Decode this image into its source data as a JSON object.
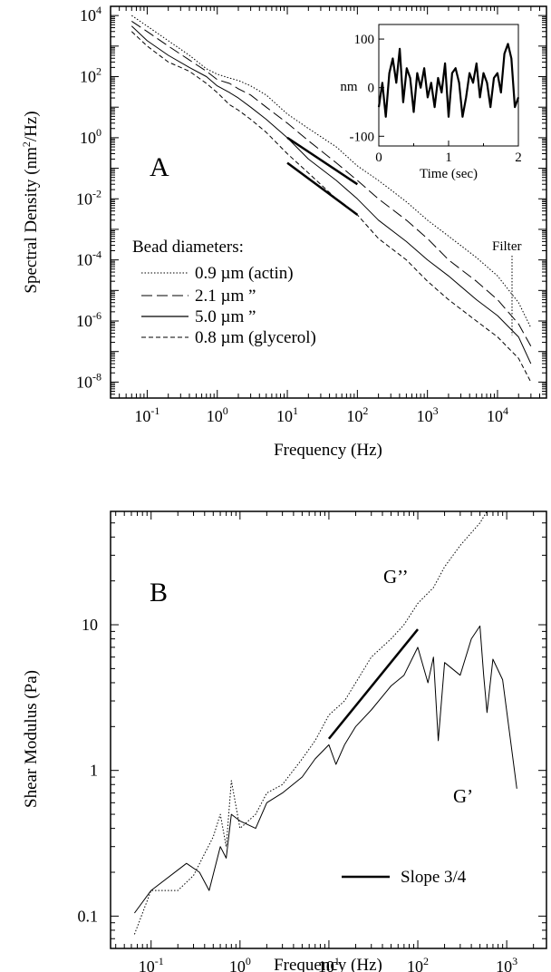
{
  "chart_data": [
    {
      "panel_label": "A",
      "type": "line",
      "xlabel": "Frequency (Hz)",
      "ylabel": "Spectral Density (nm²/Hz)",
      "ylabel_main": "Spectral Density (nm",
      "ylabel_sup": "2",
      "ylabel_end": "/Hz)",
      "xscale": "log",
      "yscale": "log",
      "xlim": [
        0.03,
        50000
      ],
      "ylim": [
        3e-09,
        20000
      ],
      "x_ticks": [
        {
          "mant": "10",
          "exp": "-1",
          "value": 0.1
        },
        {
          "mant": "10",
          "exp": "0",
          "value": 1
        },
        {
          "mant": "10",
          "exp": "1",
          "value": 10
        },
        {
          "mant": "10",
          "exp": "2",
          "value": 100
        },
        {
          "mant": "10",
          "exp": "3",
          "value": 1000
        },
        {
          "mant": "10",
          "exp": "4",
          "value": 10000
        }
      ],
      "y_ticks": [
        {
          "mant": "10",
          "exp": "4",
          "value": 10000
        },
        {
          "mant": "10",
          "exp": "2",
          "value": 100
        },
        {
          "mant": "10",
          "exp": "0",
          "value": 1
        },
        {
          "mant": "10",
          "exp": "-2",
          "value": 0.01
        },
        {
          "mant": "10",
          "exp": "-4",
          "value": 0.0001
        },
        {
          "mant": "10",
          "exp": "-6",
          "value": 1e-06
        },
        {
          "mant": "10",
          "exp": "-8",
          "value": 1e-08
        }
      ],
      "legend_title": "Bead diameters:",
      "legend_placement": "lower-left",
      "series": [
        {
          "name": "0.9 µm (actin)",
          "style": "dotted",
          "x": [
            0.06,
            0.1,
            0.2,
            0.4,
            0.7,
            1,
            1.5,
            2,
            3,
            5,
            10,
            20,
            50,
            100,
            200,
            500,
            1000,
            2000,
            5000,
            10000,
            20000,
            30000
          ],
          "y": [
            10000,
            4500,
            1500,
            500,
            180,
            120,
            90,
            75,
            50,
            25,
            6,
            2,
            0.5,
            0.12,
            0.04,
            0.008,
            0.002,
            0.0006,
            0.00012,
            3e-05,
            4e-06,
            6e-07
          ]
        },
        {
          "name": "2.1 µm   ”",
          "style": "long-dash",
          "x": [
            0.06,
            0.1,
            0.2,
            0.4,
            0.7,
            1,
            1.5,
            2,
            3,
            5,
            10,
            20,
            50,
            100,
            200,
            500,
            1000,
            2000,
            5000,
            10000,
            20000,
            30000
          ],
          "y": [
            6500,
            3000,
            1000,
            350,
            150,
            80,
            60,
            40,
            25,
            10,
            3,
            0.8,
            0.15,
            0.04,
            0.01,
            0.002,
            0.0005,
            0.0001,
            2e-05,
            5e-06,
            8e-07,
            1.5e-07
          ]
        },
        {
          "name": "5.0 µm   ”",
          "style": "solid",
          "x": [
            0.06,
            0.1,
            0.2,
            0.4,
            0.7,
            1,
            1.5,
            2,
            3,
            5,
            10,
            20,
            50,
            100,
            200,
            500,
            1000,
            2000,
            5000,
            10000,
            20000,
            30000
          ],
          "y": [
            4500,
            1500,
            500,
            200,
            100,
            50,
            30,
            20,
            10,
            4,
            1,
            0.2,
            0.04,
            0.01,
            0.002,
            0.0004,
            0.0001,
            3e-05,
            5e-06,
            1.5e-06,
            3e-07,
            4e-08
          ]
        },
        {
          "name": "0.8 µm (glycerol)",
          "style": "short-dash",
          "x": [
            0.06,
            0.1,
            0.2,
            0.4,
            0.7,
            1,
            1.5,
            2,
            3,
            5,
            10,
            20,
            50,
            100,
            200,
            500,
            1000,
            2000,
            5000,
            10000,
            20000,
            30000
          ],
          "y": [
            3000,
            1000,
            300,
            150,
            60,
            30,
            12,
            8,
            4,
            1.5,
            0.3,
            0.07,
            0.01,
            0.003,
            0.0005,
            0.0001,
            2e-05,
            5e-06,
            1e-06,
            3e-07,
            6e-08,
            1e-08
          ]
        }
      ],
      "slope_lines": [
        {
          "x": [
            10,
            100
          ],
          "y": [
            1,
            0.03
          ]
        },
        {
          "x": [
            10,
            100
          ],
          "y": [
            0.15,
            0.003
          ]
        }
      ],
      "annotations": [
        {
          "text": "Filter",
          "x": 20000
        }
      ],
      "inset": {
        "type": "line",
        "xlabel": "Time (sec)",
        "ylabel": "nm",
        "xlim": [
          0,
          2
        ],
        "ylim": [
          -120,
          130
        ],
        "x_ticks": [
          "0",
          "1",
          "2"
        ],
        "y_ticks": [
          "100",
          "0",
          "-100"
        ],
        "x": [
          0,
          0.05,
          0.1,
          0.15,
          0.2,
          0.25,
          0.3,
          0.35,
          0.4,
          0.45,
          0.5,
          0.55,
          0.6,
          0.65,
          0.7,
          0.75,
          0.8,
          0.85,
          0.9,
          0.95,
          1,
          1.05,
          1.1,
          1.15,
          1.2,
          1.25,
          1.3,
          1.35,
          1.4,
          1.45,
          1.5,
          1.55,
          1.6,
          1.65,
          1.7,
          1.75,
          1.8,
          1.85,
          1.9,
          1.95,
          2
        ],
        "y": [
          -40,
          10,
          -60,
          30,
          60,
          10,
          80,
          -30,
          40,
          20,
          -50,
          30,
          0,
          40,
          -20,
          10,
          -40,
          20,
          -10,
          50,
          -60,
          30,
          40,
          10,
          -60,
          -20,
          30,
          10,
          50,
          -20,
          30,
          10,
          -40,
          20,
          30,
          -10,
          70,
          90,
          60,
          -40,
          -20
        ]
      }
    },
    {
      "panel_label": "B",
      "type": "line",
      "xlabel": "Frequency (Hz)",
      "ylabel": "Shear Modulus (Pa)",
      "xscale": "log",
      "yscale": "log",
      "xlim": [
        0.035,
        2800
      ],
      "ylim": [
        0.06,
        60
      ],
      "x_ticks": [
        {
          "mant": "10",
          "exp": "-1",
          "value": 0.1
        },
        {
          "mant": "10",
          "exp": "0",
          "value": 1
        },
        {
          "mant": "10",
          "exp": "1",
          "value": 10
        },
        {
          "mant": "10",
          "exp": "2",
          "value": 100
        },
        {
          "mant": "10",
          "exp": "3",
          "value": 1000
        }
      ],
      "y_ticks": [
        {
          "label": "10",
          "value": 10
        },
        {
          "label": "1",
          "value": 1
        },
        {
          "label": "0.1",
          "value": 0.1
        }
      ],
      "series": [
        {
          "name": "G’’",
          "style": "dotted",
          "x": [
            0.065,
            0.1,
            0.2,
            0.3,
            0.5,
            0.6,
            0.7,
            0.8,
            1,
            1.5,
            2,
            3,
            5,
            7,
            10,
            15,
            20,
            30,
            50,
            70,
            100,
            150,
            200,
            300,
            500,
            600
          ],
          "y": [
            0.075,
            0.15,
            0.15,
            0.19,
            0.35,
            0.5,
            0.3,
            0.85,
            0.4,
            0.5,
            0.7,
            0.8,
            1.2,
            1.6,
            2.4,
            3,
            4,
            6,
            8,
            10,
            14,
            18,
            25,
            35,
            50,
            60
          ]
        },
        {
          "name": "G’",
          "style": "solid",
          "x": [
            0.065,
            0.1,
            0.25,
            0.35,
            0.45,
            0.6,
            0.7,
            0.8,
            1,
            1.5,
            2,
            3,
            5,
            7,
            10,
            12,
            15,
            20,
            30,
            50,
            70,
            100,
            130,
            150,
            170,
            200,
            300,
            400,
            500,
            550,
            600,
            700,
            900,
            1300
          ],
          "y": [
            0.105,
            0.15,
            0.23,
            0.2,
            0.15,
            0.3,
            0.25,
            0.5,
            0.45,
            0.4,
            0.6,
            0.7,
            0.9,
            1.2,
            1.5,
            1.1,
            1.5,
            2,
            2.6,
            3.8,
            4.5,
            7,
            4,
            6,
            1.6,
            5.5,
            4.5,
            8,
            9.8,
            4.5,
            2.5,
            5.8,
            4.2,
            0.75
          ]
        }
      ],
      "slope_lines": [
        {
          "x": [
            10,
            100
          ],
          "y": [
            1.65,
            9.3
          ]
        }
      ],
      "legend": {
        "label": "Slope 3/4",
        "placement": "lower-right"
      },
      "curve_labels": [
        "G’’",
        "G’"
      ]
    }
  ]
}
